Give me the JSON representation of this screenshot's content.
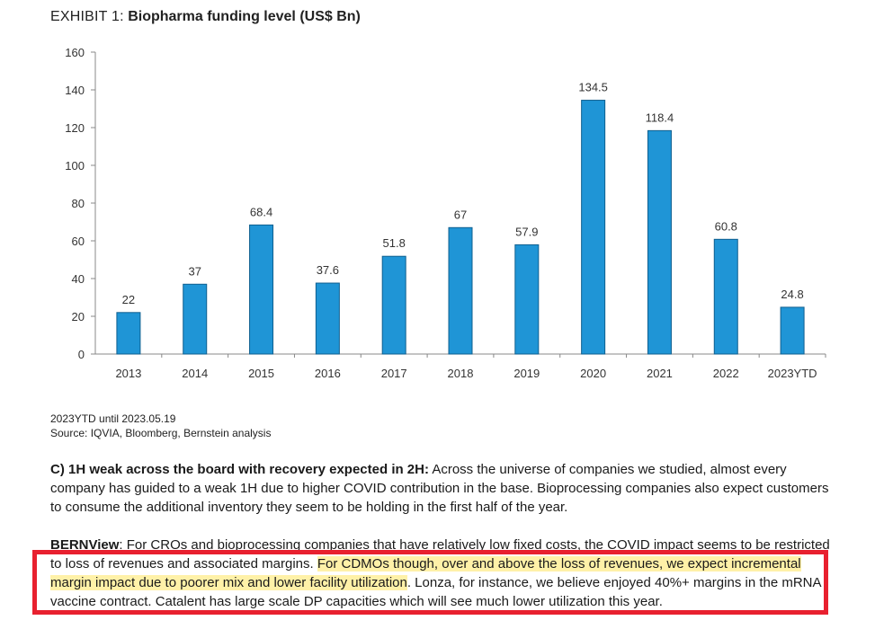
{
  "header": {
    "prefix": "EXHIBIT 1:",
    "title": "Biopharma funding level (US$ Bn)"
  },
  "chart_data": {
    "type": "bar",
    "title": "Biopharma funding level (US$ Bn)",
    "xlabel": "",
    "ylabel": "",
    "categories": [
      "2013",
      "2014",
      "2015",
      "2016",
      "2017",
      "2018",
      "2019",
      "2020",
      "2021",
      "2022",
      "2023YTD"
    ],
    "values": [
      22,
      37,
      68.4,
      37.6,
      51.8,
      67,
      57.9,
      134.5,
      118.4,
      60.8,
      24.8
    ],
    "data_labels": [
      "22",
      "37",
      "68.4",
      "37.6",
      "51.8",
      "67",
      "57.9",
      "134.5",
      "118.4",
      "60.8",
      "24.8"
    ],
    "ylim": [
      0,
      160
    ],
    "yticks": [
      0,
      20,
      40,
      60,
      80,
      100,
      120,
      140,
      160
    ],
    "grid": false,
    "legend": "none",
    "bar_color": "#1f95d6"
  },
  "notes": {
    "line1": "2023YTD until 2023.05.19",
    "line2": "Source: IQVIA, Bloomberg, Bernstein analysis"
  },
  "section_c": {
    "lead": "C) 1H weak across the board with recovery expected in 2H:",
    "body": " Across the universe of companies we studied, almost every company has guided to a weak 1H due to higher COVID contribution in the base. Bioprocessing companies also expect customers to consume the additional inventory they seem to be holding in the first half of the year."
  },
  "bernview": {
    "lead": "BERNView",
    "part1": ": For CROs and bioprocessing companies that have relatively low fixed costs, the COVID impact seems to be restricted to loss of revenues and associated margins. ",
    "highlight": "For CDMOs though, over and above the loss of revenues, we expect incremental margin impact due to poorer mix and lower facility utilization",
    "part2": ". Lonza, for instance, we believe enjoyed 40%+ margins in the mRNA vaccine contract. Catalent has large scale DP capacities which will see much lower utilization this year."
  },
  "colors": {
    "bar": "#1f95d6",
    "box": "#e8202f",
    "highlight": "#ffe86e"
  }
}
